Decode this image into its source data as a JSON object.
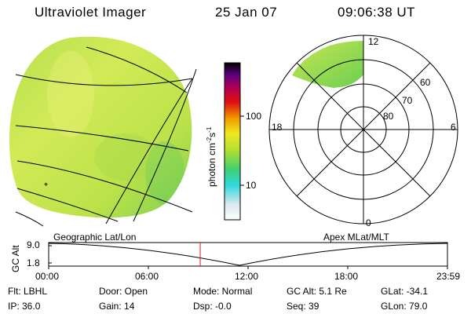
{
  "header": {
    "title": "Ultraviolet Imager",
    "date": "25 Jan 07",
    "time": "09:06:38 UT"
  },
  "colorbar": {
    "unit_label": "photon cm",
    "unit_sup1": "-2",
    "unit_mid": "s",
    "unit_sup2": "-1",
    "tick_100": "100",
    "tick_10": "10"
  },
  "polar_plot": {
    "label_top": "12",
    "label_left": "18",
    "label_right": "6",
    "label_bottom": "0",
    "ring_60": "60",
    "ring_70": "70",
    "ring_80": "80"
  },
  "altitude_panel": {
    "ylabel": "GC Alt",
    "ytick_top": "9.0",
    "ytick_bottom": "1.8",
    "left_title": "Geographic Lat/Lon",
    "right_title": "Apex MLat/MLT",
    "xticks": [
      "00:00",
      "06:00",
      "12:00",
      "18:00",
      "23:59"
    ],
    "current_time_fraction": 0.38
  },
  "info": {
    "flt": "Flt: LBHL",
    "ip": "IP: 36.0",
    "door": "Door: Open",
    "gain": "Gain: 14",
    "mode": "Mode: Normal",
    "dsp": "Dsp:  -0.0",
    "gcalt": "GC Alt: 5.1 Re",
    "seq": "Seq: 39",
    "glat": "GLat: -34.1",
    "glon": "GLon: 79.0"
  },
  "colors": {
    "image_fill": "#c8e63c",
    "image_fill_dark": "#7fd24a",
    "current_time_marker": "#d02020"
  }
}
